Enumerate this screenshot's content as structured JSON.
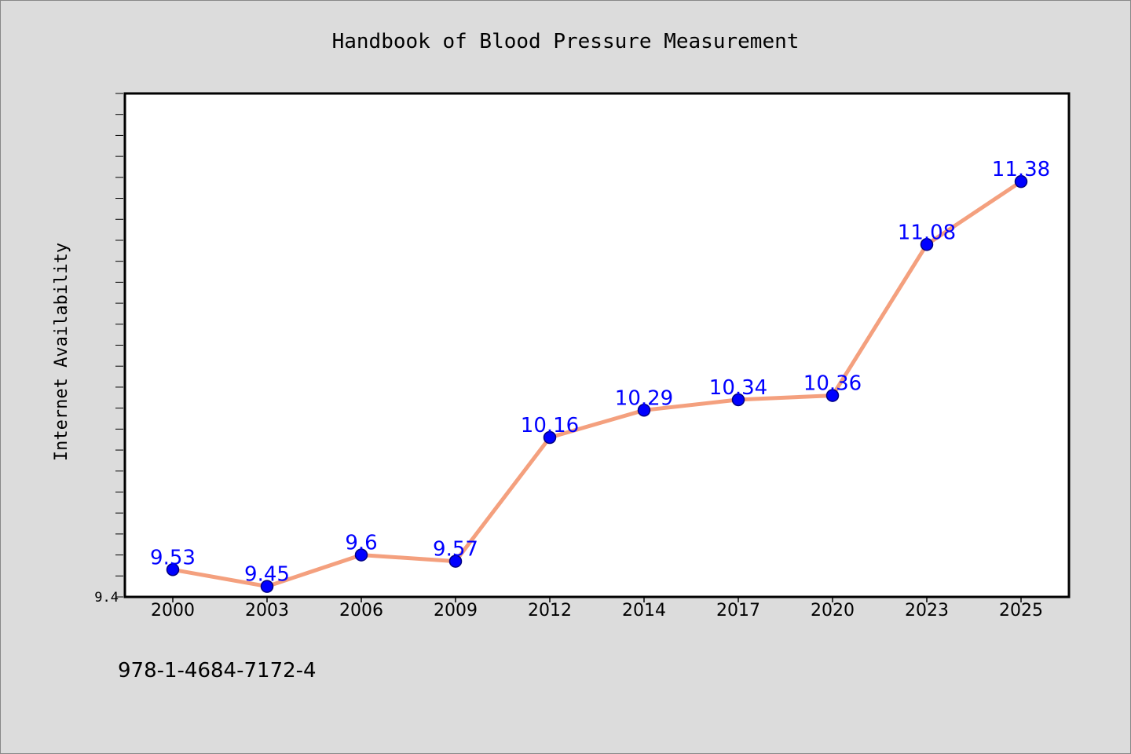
{
  "chart_data": {
    "type": "line",
    "title": "Handbook of Blood Pressure Measurement",
    "xlabel": "",
    "ylabel": "Internet Availability",
    "categories": [
      "2000",
      "2003",
      "2006",
      "2009",
      "2012",
      "2014",
      "2017",
      "2020",
      "2023",
      "2025"
    ],
    "series": [
      {
        "values": [
          9.53,
          9.45,
          9.6,
          9.57,
          10.16,
          10.29,
          10.34,
          10.36,
          11.08,
          11.38
        ],
        "data_labels": [
          "9.53",
          "9.45",
          "9.6",
          "9.57",
          "10.16",
          "10.29",
          "10.34",
          "10.36",
          "11.08",
          "11.38"
        ]
      }
    ],
    "ylim": [
      9.4,
      11.8
    ],
    "y_tick_labels": [
      "9.4"
    ],
    "grid": false,
    "legend": "none"
  },
  "footer": {
    "isbn": "978-1-4684-7172-4"
  },
  "colors": {
    "background": "#dcdcdc",
    "plot_background": "#ffffff",
    "line": "#f4a07e",
    "marker": "#0000ff",
    "marker_edge": "#000080",
    "data_label": "#0000ff"
  }
}
